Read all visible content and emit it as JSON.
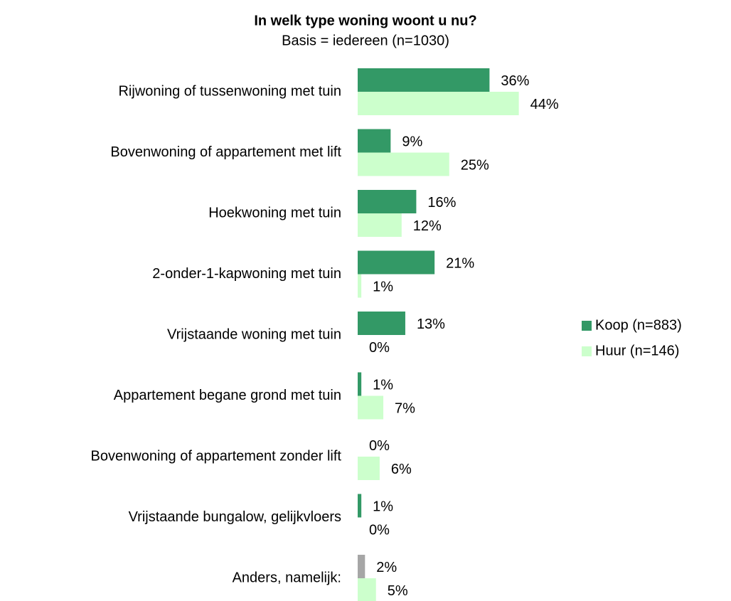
{
  "chart_data": {
    "type": "hbar",
    "title": "In welk type woning woont u nu?",
    "subtitle": "Basis = iedereen (n=1030)",
    "categories": [
      "Rijwoning of tussenwoning met tuin",
      "Bovenwoning of appartement met lift",
      "Hoekwoning met tuin",
      "2-onder-1-kapwoning met tuin",
      "Vrijstaande woning met tuin",
      "Appartement begane grond met tuin",
      "Bovenwoning of appartement zonder lift",
      "Vrijstaande bungalow, gelijkvloers",
      "Anders, namelijk:"
    ],
    "series": [
      {
        "name": "Koop (n=883)",
        "color": "#339966",
        "colors": [
          "#339966",
          "#339966",
          "#339966",
          "#339966",
          "#339966",
          "#339966",
          "#339966",
          "#339966",
          "#a6a6a6"
        ],
        "values": [
          36,
          9,
          16,
          21,
          13,
          1,
          0,
          1,
          2
        ],
        "value_labels": [
          "36%",
          "9%",
          "16%",
          "21%",
          "13%",
          "1%",
          "0%",
          "1%",
          "2%"
        ]
      },
      {
        "name": "Huur (n=146)",
        "color": "#ccffcc",
        "values": [
          44,
          25,
          12,
          1,
          0,
          7,
          6,
          0,
          5
        ],
        "value_labels": [
          "44%",
          "25%",
          "12%",
          "1%",
          "0%",
          "7%",
          "6%",
          "0%",
          "5%"
        ]
      }
    ],
    "legend": "right"
  }
}
